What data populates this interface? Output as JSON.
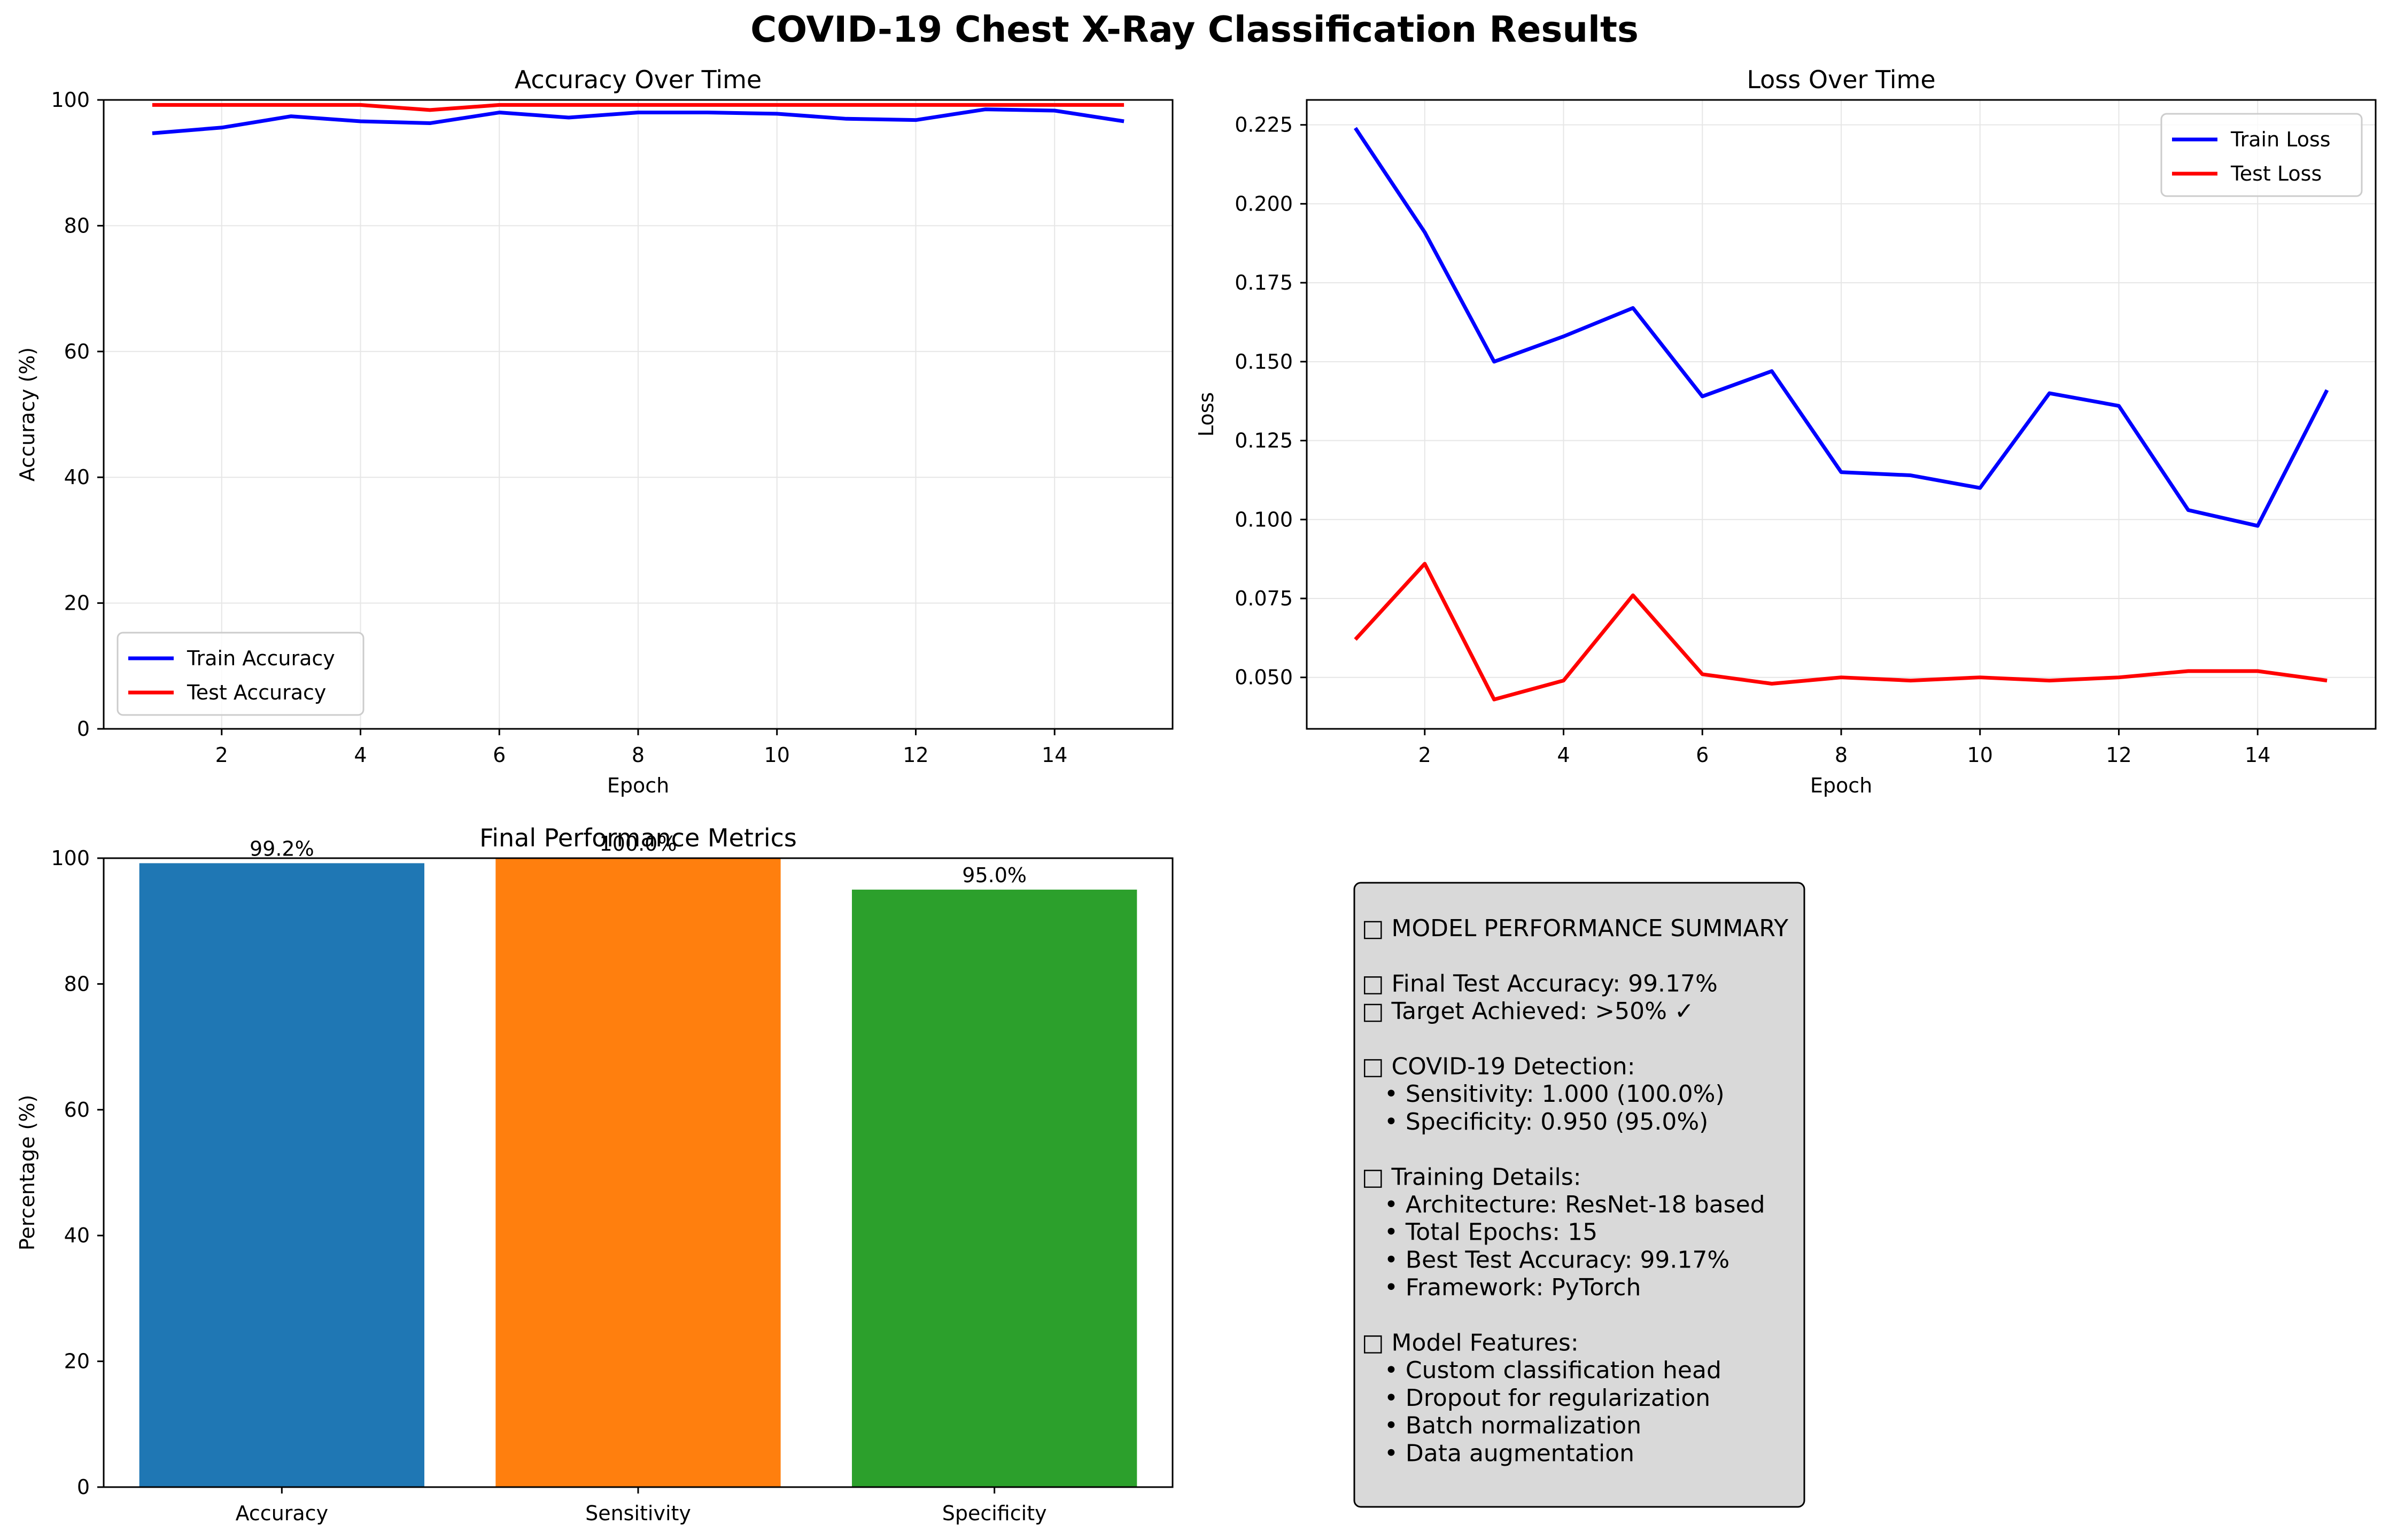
{
  "suptitle": "COVID-19 Chest X-Ray Classification Results",
  "chart_data": [
    {
      "type": "line",
      "title": "Accuracy Over Time",
      "xlabel": "Epoch",
      "ylabel": "Accuracy (%)",
      "xlim": [
        0.3,
        15.7
      ],
      "ylim": [
        0,
        100
      ],
      "xticks": [
        2,
        4,
        6,
        8,
        10,
        12,
        14
      ],
      "yticks": [
        0,
        20,
        40,
        60,
        80,
        100
      ],
      "grid": true,
      "legend_position": "lower-left",
      "x": [
        1,
        2,
        3,
        4,
        5,
        6,
        7,
        8,
        9,
        10,
        11,
        12,
        13,
        14,
        15
      ],
      "series": [
        {
          "name": "Train Accuracy",
          "color": "#0000ff",
          "values": [
            94.7,
            95.6,
            97.4,
            96.6,
            96.3,
            98.0,
            97.2,
            98.0,
            98.0,
            97.8,
            97.0,
            96.8,
            98.5,
            98.3,
            96.6
          ]
        },
        {
          "name": "Test Accuracy",
          "color": "#ff0000",
          "values": [
            99.2,
            99.2,
            99.2,
            99.2,
            98.4,
            99.2,
            99.2,
            99.2,
            99.2,
            99.2,
            99.2,
            99.2,
            99.2,
            99.2,
            99.2
          ]
        }
      ]
    },
    {
      "type": "line",
      "title": "Loss Over Time",
      "xlabel": "Epoch",
      "ylabel": "Loss",
      "xlim": [
        0.3,
        15.7
      ],
      "ylim": [
        0.0337,
        0.2329
      ],
      "xticks": [
        2,
        4,
        6,
        8,
        10,
        12,
        14
      ],
      "yticks": [
        0.05,
        0.075,
        0.1,
        0.125,
        0.15,
        0.175,
        0.2,
        0.225
      ],
      "ytick_labels": [
        "0.050",
        "0.075",
        "0.100",
        "0.125",
        "0.150",
        "0.175",
        "0.200",
        "0.225"
      ],
      "grid": true,
      "legend_position": "upper-right",
      "x": [
        1,
        2,
        3,
        4,
        5,
        6,
        7,
        8,
        9,
        10,
        11,
        12,
        13,
        14,
        15
      ],
      "series": [
        {
          "name": "Train Loss",
          "color": "#0000ff",
          "values": [
            0.224,
            0.191,
            0.15,
            0.158,
            0.167,
            0.139,
            0.147,
            0.115,
            0.114,
            0.11,
            0.14,
            0.136,
            0.103,
            0.098,
            0.141
          ]
        },
        {
          "name": "Test Loss",
          "color": "#ff0000",
          "values": [
            0.062,
            0.086,
            0.043,
            0.049,
            0.076,
            0.051,
            0.048,
            0.05,
            0.049,
            0.05,
            0.049,
            0.05,
            0.052,
            0.052,
            0.049
          ]
        }
      ]
    },
    {
      "type": "bar",
      "title": "Final Performance Metrics",
      "xlabel": "",
      "ylabel": "Percentage (%)",
      "ylim": [
        0,
        100
      ],
      "yticks": [
        0,
        20,
        40,
        60,
        80,
        100
      ],
      "grid": false,
      "categories": [
        "Accuracy",
        "Sensitivity",
        "Specificity"
      ],
      "values": [
        99.2,
        100.0,
        95.0
      ],
      "labels": [
        "99.2%",
        "100.0%",
        "95.0%"
      ],
      "colors": [
        "#1f77b4",
        "#ff7f0e",
        "#2ca02c"
      ]
    }
  ],
  "summary": {
    "background": "#d9d9d9",
    "lines": [
      "□ MODEL PERFORMANCE SUMMARY",
      "",
      "□ Final Test Accuracy: 99.17%",
      "□ Target Achieved: >50% ✓",
      "",
      "□ COVID-19 Detection:",
      "   • Sensitivity: 1.000 (100.0%)",
      "   • Specificity: 0.950 (95.0%)",
      "",
      "□ Training Details:",
      "   • Architecture: ResNet-18 based",
      "   • Total Epochs: 15",
      "   • Best Test Accuracy: 99.17%",
      "   • Framework: PyTorch",
      "",
      "□ Model Features:",
      "   • Custom classification head",
      "   • Dropout for regularization",
      "   • Batch normalization",
      "   • Data augmentation"
    ]
  }
}
